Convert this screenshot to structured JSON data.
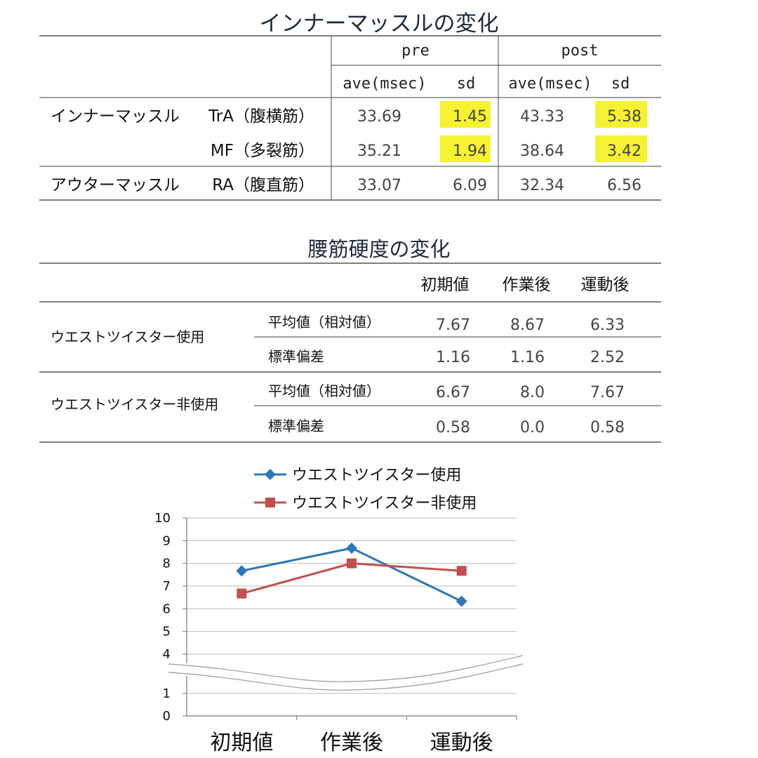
{
  "table1": {
    "title": "インナーマッスルの変化",
    "header_groups": [
      "pre",
      "post"
    ],
    "subheaders": [
      "ave(msec)",
      "sd",
      "ave(msec)",
      "sd"
    ],
    "rows": [
      {
        "group": "インナーマッスル",
        "muscle": "TrA（腹横筋）",
        "pre_ave": "33.69",
        "pre_sd": "1.45",
        "post_ave": "43.33",
        "post_sd": "5.38"
      },
      {
        "group": "",
        "muscle": "MF（多裂筋）",
        "pre_ave": "35.21",
        "pre_sd": "1.94",
        "post_ave": "38.64",
        "post_sd": "3.42"
      },
      {
        "group": "アウターマッスル",
        "muscle": "RA（腹直筋）",
        "pre_ave": "33.07",
        "pre_sd": "6.09",
        "post_ave": "32.34",
        "post_sd": "6.56"
      }
    ],
    "highlight_color": "#f6f233"
  },
  "table2": {
    "title": "腰筋硬度の変化",
    "columns": [
      "初期値",
      "作業後",
      "運動後"
    ],
    "groups": [
      {
        "name": "ウエストツイスター使用",
        "rows": [
          {
            "label": "平均値（相対値）",
            "values": [
              "7.67",
              "8.67",
              "6.33"
            ]
          },
          {
            "label": "標準偏差",
            "values": [
              "1.16",
              "1.16",
              "2.52"
            ]
          }
        ]
      },
      {
        "name": "ウエストツイスター非使用",
        "rows": [
          {
            "label": "平均値（相対値）",
            "values": [
              "6.67",
              "8.0",
              "7.67"
            ]
          },
          {
            "label": "標準偏差",
            "values": [
              "0.58",
              "0.0",
              "0.58"
            ]
          }
        ]
      }
    ]
  },
  "chart_data": {
    "type": "line",
    "categories": [
      "初期値",
      "作業後",
      "運動後"
    ],
    "series": [
      {
        "name": "ウエストツイスター使用",
        "values": [
          7.67,
          8.67,
          6.33
        ],
        "color": "#2e75b6",
        "marker": "diamond"
      },
      {
        "name": "ウエストツイスター非使用",
        "values": [
          6.67,
          8.0,
          7.67
        ],
        "color": "#c0504d",
        "marker": "square"
      }
    ],
    "y_ticks_upper": [
      "4",
      "5",
      "6",
      "7",
      "8",
      "9",
      "10"
    ],
    "y_ticks_lower": [
      "0",
      "1"
    ],
    "ylim": [
      0,
      10
    ],
    "axis_break": [
      1,
      4
    ],
    "grid": true,
    "legend_position": "top"
  }
}
